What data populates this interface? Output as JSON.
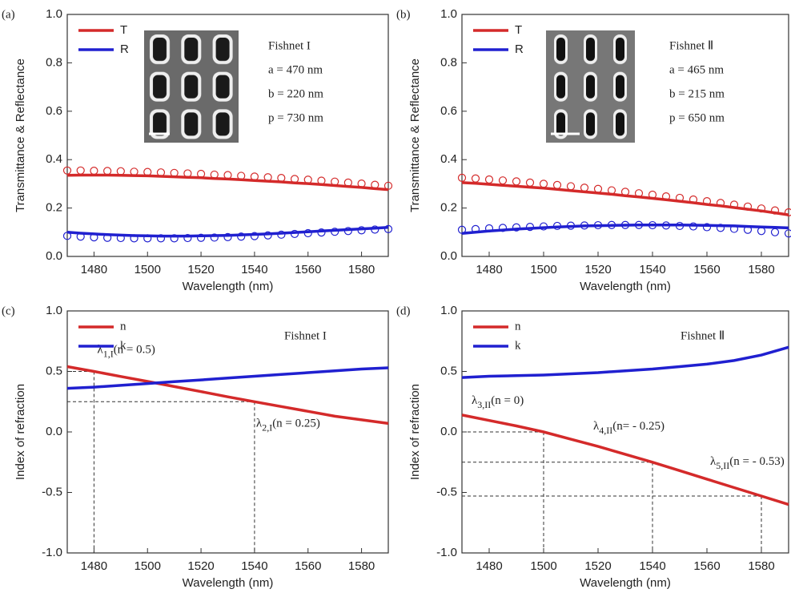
{
  "chart_data": [
    {
      "type": "line",
      "panel_label": "(a)",
      "xlabel": "Wavelength (nm)",
      "ylabel": "Transmittance & Reflectance",
      "x": [
        1470,
        1475,
        1480,
        1485,
        1490,
        1495,
        1500,
        1505,
        1510,
        1515,
        1520,
        1525,
        1530,
        1535,
        1540,
        1545,
        1550,
        1555,
        1560,
        1565,
        1570,
        1575,
        1580,
        1585,
        1590
      ],
      "xlim": [
        1470,
        1590
      ],
      "xticks": [
        1480,
        1500,
        1520,
        1540,
        1560,
        1580
      ],
      "ylim": [
        0,
        1
      ],
      "yticks": [
        {
          "value": 0,
          "label": "0.0"
        },
        0.2,
        0.4,
        0.6,
        0.8,
        {
          "value": 1,
          "label": "1.0"
        }
      ],
      "legend": "upper left",
      "series": [
        {
          "name": "T",
          "color": "#d42a2a",
          "style": "line",
          "values": [
            0.335,
            0.336,
            0.336,
            0.336,
            0.335,
            0.334,
            0.333,
            0.331,
            0.329,
            0.327,
            0.325,
            0.322,
            0.32,
            0.317,
            0.314,
            0.311,
            0.308,
            0.304,
            0.301,
            0.297,
            0.293,
            0.289,
            0.285,
            0.28,
            0.276
          ]
        },
        {
          "name": "R",
          "color": "#2020d0",
          "style": "line",
          "values": [
            0.1,
            0.096,
            0.093,
            0.09,
            0.088,
            0.086,
            0.085,
            0.084,
            0.084,
            0.084,
            0.085,
            0.086,
            0.087,
            0.089,
            0.091,
            0.093,
            0.096,
            0.099,
            0.102,
            0.105,
            0.108,
            0.111,
            0.114,
            0.117,
            0.12
          ]
        },
        {
          "color": "#d42a2a",
          "style": "markers",
          "values": [
            0.355,
            0.355,
            0.354,
            0.353,
            0.352,
            0.35,
            0.349,
            0.347,
            0.345,
            0.343,
            0.341,
            0.338,
            0.336,
            0.333,
            0.33,
            0.327,
            0.324,
            0.32,
            0.317,
            0.313,
            0.309,
            0.305,
            0.301,
            0.296,
            0.292
          ]
        },
        {
          "color": "#2020d0",
          "style": "markers",
          "values": [
            0.085,
            0.082,
            0.079,
            0.077,
            0.076,
            0.075,
            0.075,
            0.075,
            0.075,
            0.076,
            0.077,
            0.078,
            0.08,
            0.082,
            0.084,
            0.087,
            0.09,
            0.093,
            0.096,
            0.099,
            0.102,
            0.105,
            0.108,
            0.111,
            0.113
          ]
        }
      ],
      "text_box": [
        "Fishnet I",
        "a = 470 nm",
        "b = 220 nm",
        "p = 730 nm"
      ]
    },
    {
      "type": "line",
      "panel_label": "(b)",
      "xlabel": "Wavelength (nm)",
      "ylabel": "Transmittance & Reflectance",
      "x": [
        1470,
        1475,
        1480,
        1485,
        1490,
        1495,
        1500,
        1505,
        1510,
        1515,
        1520,
        1525,
        1530,
        1535,
        1540,
        1545,
        1550,
        1555,
        1560,
        1565,
        1570,
        1575,
        1580,
        1585,
        1590
      ],
      "xlim": [
        1470,
        1590
      ],
      "xticks": [
        1480,
        1500,
        1520,
        1540,
        1560,
        1580
      ],
      "ylim": [
        0,
        1
      ],
      "yticks": [
        {
          "value": 0,
          "label": "0.0"
        },
        0.2,
        0.4,
        0.6,
        0.8,
        {
          "value": 1,
          "label": "1.0"
        }
      ],
      "legend": "upper left",
      "series": [
        {
          "name": "T",
          "color": "#d42a2a",
          "style": "line",
          "values": [
            0.305,
            0.302,
            0.298,
            0.294,
            0.29,
            0.286,
            0.282,
            0.277,
            0.272,
            0.267,
            0.262,
            0.257,
            0.251,
            0.246,
            0.24,
            0.234,
            0.228,
            0.222,
            0.215,
            0.209,
            0.202,
            0.195,
            0.188,
            0.18,
            0.172
          ]
        },
        {
          "name": "R",
          "color": "#2020d0",
          "style": "line",
          "values": [
            0.095,
            0.1,
            0.105,
            0.109,
            0.113,
            0.116,
            0.119,
            0.122,
            0.124,
            0.126,
            0.127,
            0.128,
            0.129,
            0.13,
            0.13,
            0.13,
            0.13,
            0.129,
            0.128,
            0.127,
            0.126,
            0.124,
            0.122,
            0.12,
            0.118
          ]
        },
        {
          "color": "#d42a2a",
          "style": "markers",
          "values": [
            0.325,
            0.322,
            0.318,
            0.314,
            0.31,
            0.305,
            0.3,
            0.295,
            0.29,
            0.284,
            0.279,
            0.273,
            0.267,
            0.261,
            0.255,
            0.248,
            0.242,
            0.235,
            0.228,
            0.221,
            0.214,
            0.206,
            0.198,
            0.19,
            0.182
          ]
        },
        {
          "color": "#2020d0",
          "style": "markers",
          "values": [
            0.11,
            0.113,
            0.116,
            0.118,
            0.12,
            0.122,
            0.124,
            0.126,
            0.127,
            0.128,
            0.129,
            0.13,
            0.13,
            0.13,
            0.129,
            0.128,
            0.126,
            0.124,
            0.121,
            0.118,
            0.114,
            0.11,
            0.105,
            0.1,
            0.095
          ]
        }
      ],
      "text_box": [
        "Fishnet Ⅱ",
        "a = 465 nm",
        "b = 215 nm",
        "p = 650 nm"
      ]
    },
    {
      "type": "line",
      "panel_label": "(c)",
      "xlabel": "Wavelength (nm)",
      "ylabel": "Index of refraction",
      "x": [
        1470,
        1480,
        1490,
        1500,
        1510,
        1520,
        1530,
        1540,
        1550,
        1560,
        1570,
        1580,
        1590
      ],
      "xlim": [
        1470,
        1590
      ],
      "xticks": [
        1480,
        1500,
        1520,
        1540,
        1560,
        1580
      ],
      "ylim": [
        -1,
        1
      ],
      "yticks": [
        {
          "value": -1,
          "label": "-1.0"
        },
        -0.5,
        {
          "value": 0,
          "label": "0.0"
        },
        0.5,
        {
          "value": 1,
          "label": "1.0"
        }
      ],
      "legend": "upper left",
      "series": [
        {
          "name": "n",
          "color": "#d42a2a",
          "style": "line",
          "values": [
            0.54,
            0.5,
            0.458,
            0.417,
            0.375,
            0.333,
            0.29,
            0.25,
            0.21,
            0.17,
            0.13,
            0.1,
            0.07
          ]
        },
        {
          "name": "k",
          "color": "#2020d0",
          "style": "line",
          "values": [
            0.36,
            0.37,
            0.385,
            0.4,
            0.415,
            0.43,
            0.445,
            0.46,
            0.475,
            0.49,
            0.505,
            0.52,
            0.53
          ]
        }
      ],
      "guides": [
        {
          "x": 1480,
          "y": 0.5,
          "symbol": "λ",
          "subscript": "1,I",
          "label": "(n = 0.5)"
        },
        {
          "x": 1540,
          "y": 0.25,
          "symbol": "λ",
          "subscript": "2,I",
          "label": "(n = 0.25)"
        }
      ],
      "text_box": [
        "Fishnet I"
      ]
    },
    {
      "type": "line",
      "panel_label": "(d)",
      "xlabel": "Wavelength (nm)",
      "ylabel": "Index of refraction",
      "x": [
        1470,
        1480,
        1490,
        1500,
        1510,
        1520,
        1530,
        1540,
        1550,
        1560,
        1570,
        1580,
        1590
      ],
      "xlim": [
        1470,
        1590
      ],
      "xticks": [
        1480,
        1500,
        1520,
        1540,
        1560,
        1580
      ],
      "ylim": [
        -1,
        1
      ],
      "yticks": [
        {
          "value": -1,
          "label": "-1.0"
        },
        -0.5,
        {
          "value": 0,
          "label": "0.0"
        },
        0.5,
        {
          "value": 1,
          "label": "1.0"
        }
      ],
      "legend": "upper left",
      "series": [
        {
          "name": "n",
          "color": "#d42a2a",
          "style": "line",
          "values": [
            0.14,
            0.095,
            0.05,
            0.0,
            -0.06,
            -0.12,
            -0.185,
            -0.25,
            -0.32,
            -0.39,
            -0.46,
            -0.53,
            -0.6
          ]
        },
        {
          "name": "k",
          "color": "#2020d0",
          "style": "line",
          "values": [
            0.45,
            0.46,
            0.465,
            0.47,
            0.48,
            0.49,
            0.505,
            0.52,
            0.54,
            0.56,
            0.59,
            0.635,
            0.7
          ]
        }
      ],
      "guides": [
        {
          "x": 1500,
          "y": 0,
          "symbol": "λ",
          "subscript": "3,II",
          "label": "(n = 0)"
        },
        {
          "x": 1540,
          "y": -0.25,
          "symbol": "λ",
          "subscript": "4,II",
          "label": "(n= - 0.25)"
        },
        {
          "x": 1580,
          "y": -0.53,
          "symbol": "λ",
          "subscript": "5,II",
          "label": "(n = - 0.53)"
        }
      ],
      "text_box": [
        "Fishnet Ⅱ"
      ]
    }
  ]
}
